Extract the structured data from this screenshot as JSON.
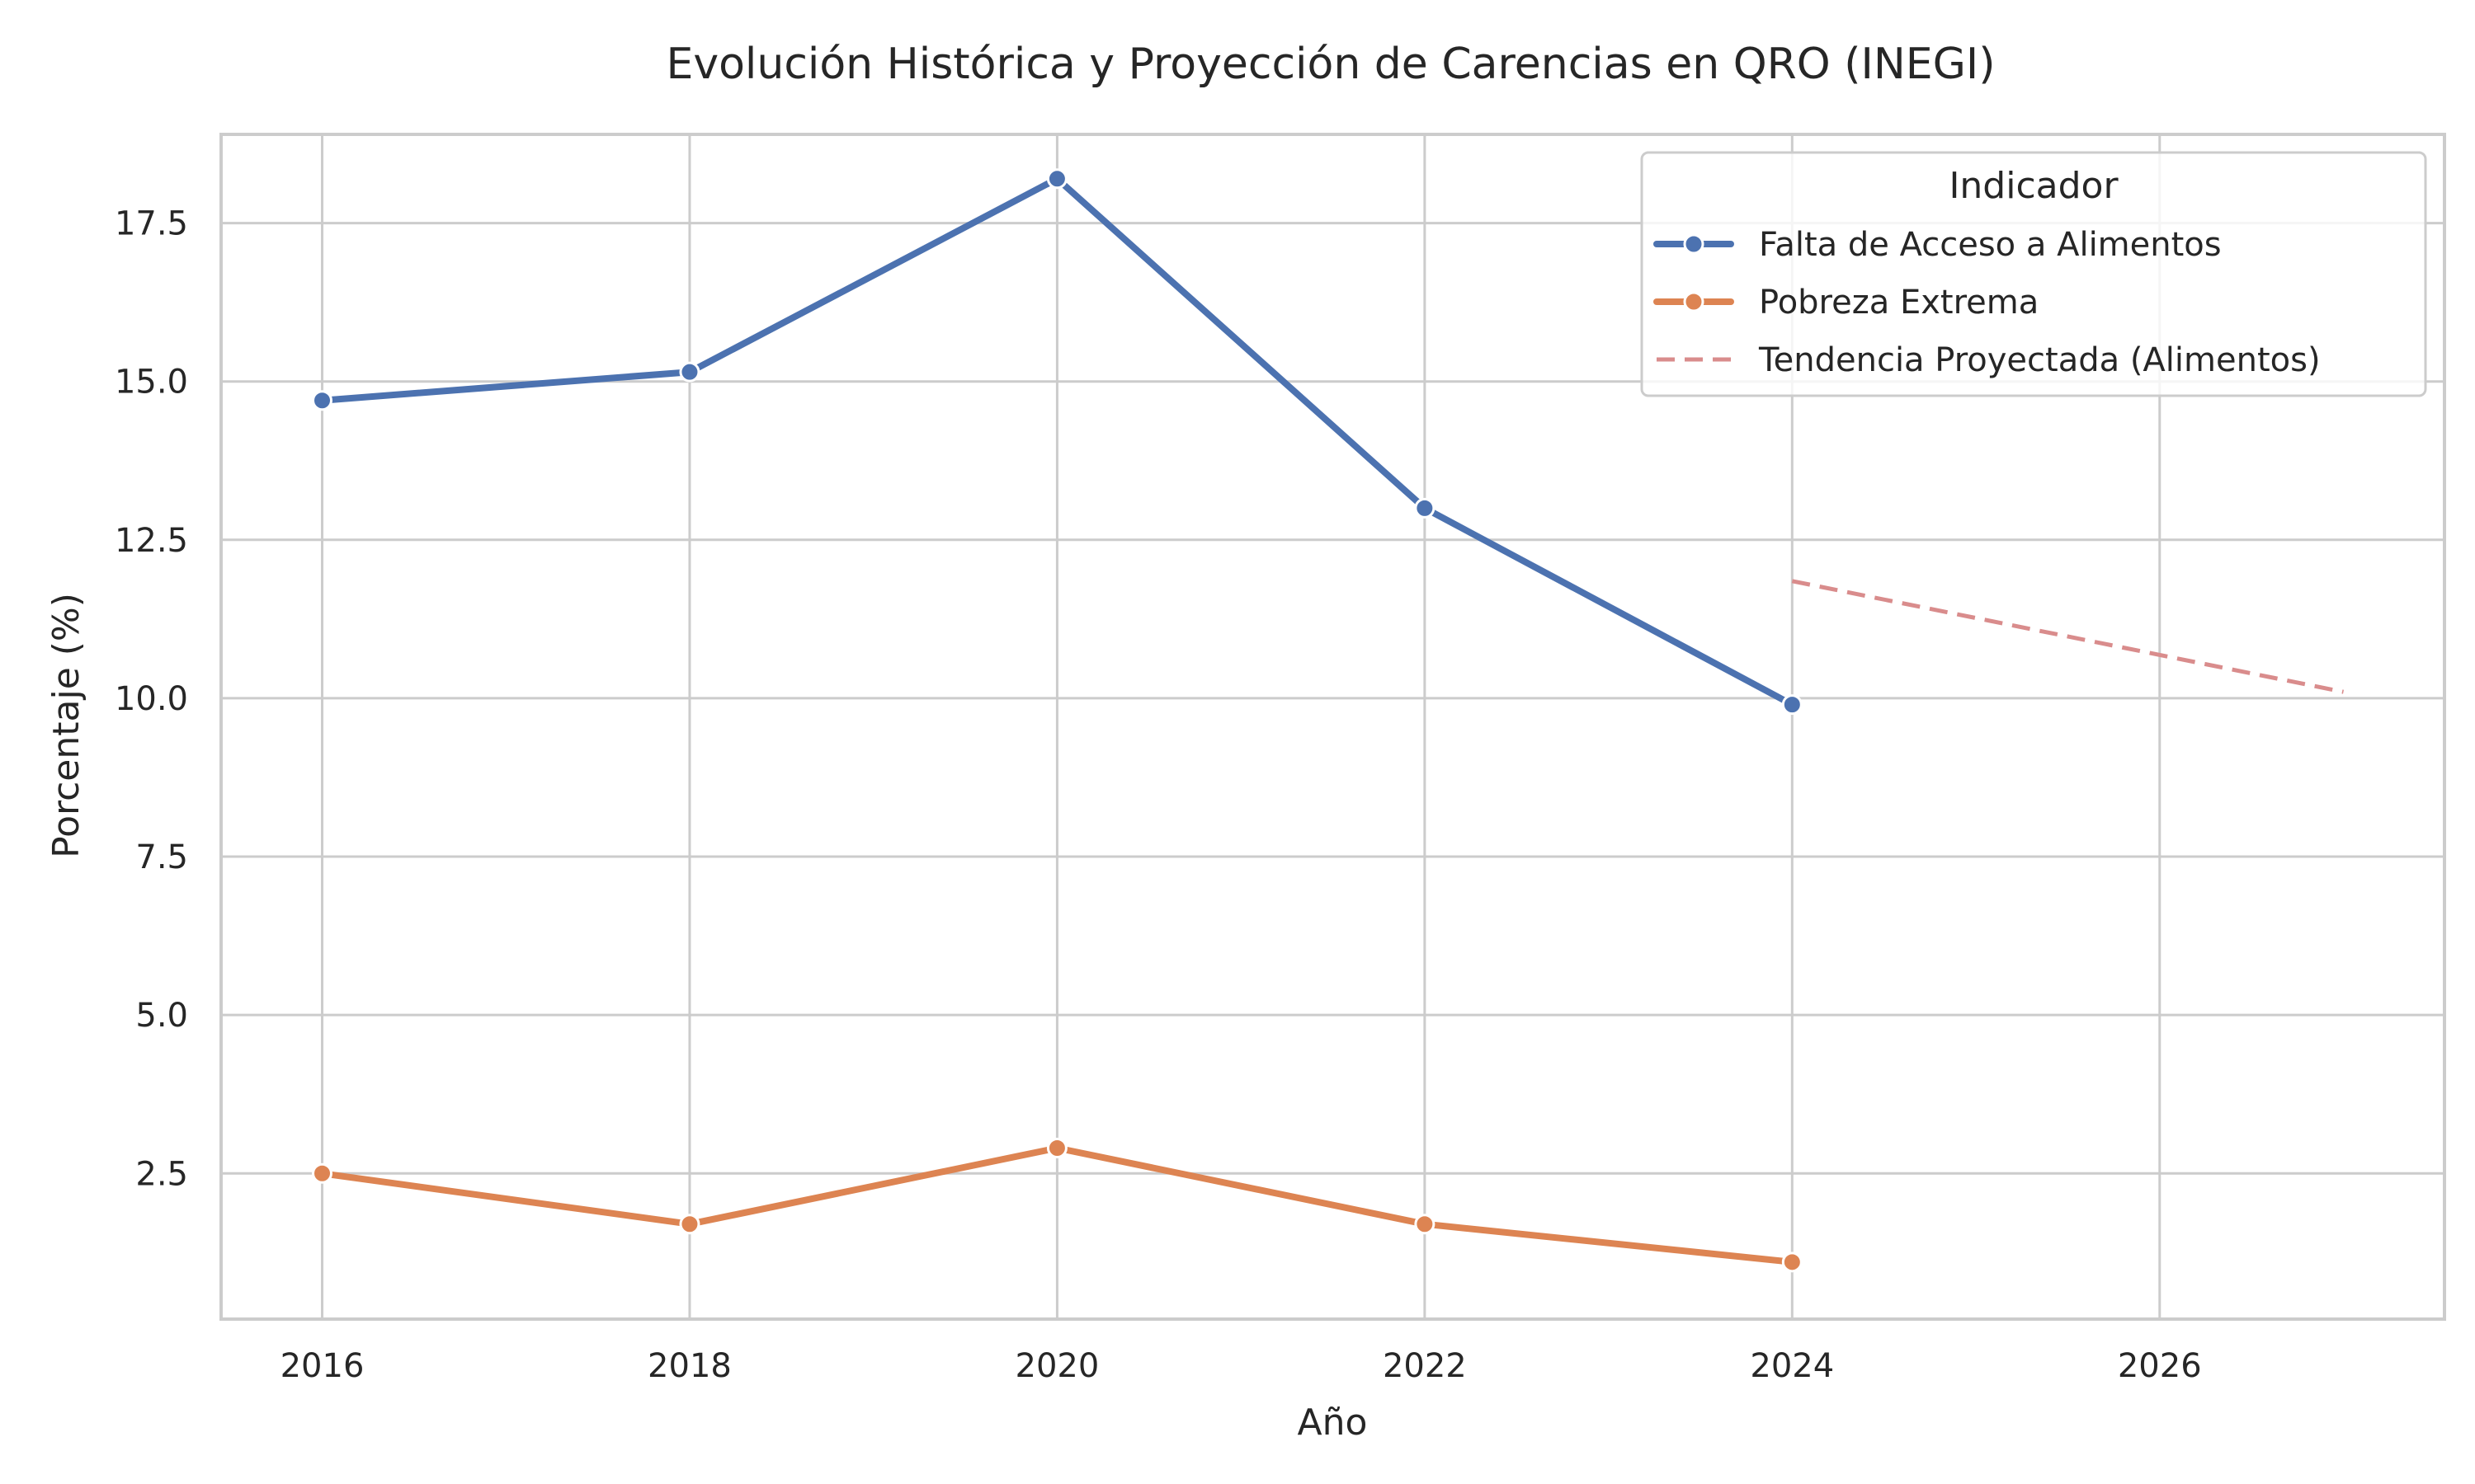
{
  "chart_data": {
    "type": "line",
    "title": "Evolución Histórica y Proyección de Carencias en QRO (INEGI)",
    "xlabel": "Año",
    "ylabel": "Porcentaje (%)",
    "xlim": [
      2015.45,
      2027.55
    ],
    "ylim": [
      0.2,
      18.9
    ],
    "x_ticks": [
      2016,
      2018,
      2020,
      2022,
      2024,
      2026
    ],
    "y_ticks": [
      2.5,
      5.0,
      7.5,
      10.0,
      12.5,
      15.0,
      17.5
    ],
    "x_tick_labels": [
      "2016",
      "2018",
      "2020",
      "2022",
      "2024",
      "2026"
    ],
    "y_tick_labels": [
      "2.5",
      "5.0",
      "7.5",
      "10.0",
      "12.5",
      "15.0",
      "17.5"
    ],
    "grid": true,
    "legend": {
      "title": "Indicador",
      "placement": "top-right"
    },
    "series": [
      {
        "name": "Falta de Acceso a Alimentos",
        "color": "#4c72b0",
        "style": "solid",
        "markers": true,
        "x": [
          2016,
          2018,
          2020,
          2022,
          2024
        ],
        "y": [
          14.7,
          15.15,
          18.2,
          13.0,
          9.9
        ]
      },
      {
        "name": "Pobreza Extrema",
        "color": "#dd8452",
        "style": "solid",
        "markers": true,
        "x": [
          2016,
          2018,
          2020,
          2022,
          2024
        ],
        "y": [
          2.5,
          1.7,
          2.9,
          1.7,
          1.1
        ]
      },
      {
        "name": "Tendencia Proyectada (Alimentos)",
        "color": "#d98c8c",
        "style": "dashed",
        "markers": false,
        "x": [
          2024,
          2027
        ],
        "y": [
          11.85,
          10.1
        ]
      }
    ]
  }
}
